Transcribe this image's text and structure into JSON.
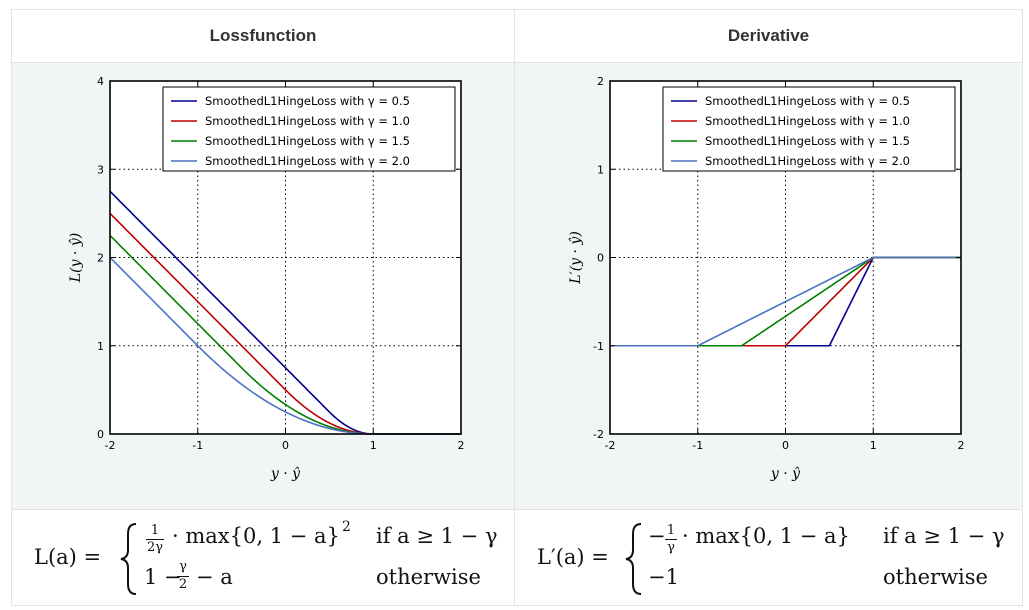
{
  "table": {
    "headers": [
      "Lossfunction",
      "Derivative"
    ]
  },
  "chart_data": [
    {
      "type": "line",
      "title": "",
      "xlabel": "y · ŷ",
      "ylabel": "L(y · ŷ)",
      "xlim": [
        -2,
        2
      ],
      "ylim": [
        0,
        4
      ],
      "xticks": [
        -2,
        -1,
        0,
        1,
        2
      ],
      "yticks": [
        0,
        1,
        2,
        3,
        4
      ],
      "grid": true,
      "legend_position": "top-right",
      "series": [
        {
          "name": "SmoothedL1HingeLoss with γ = 0.5",
          "color": "#00008b",
          "gamma": 0.5
        },
        {
          "name": "SmoothedL1HingeLoss with γ = 1.0",
          "color": "#c00000",
          "gamma": 1.0
        },
        {
          "name": "SmoothedL1HingeLoss with γ = 1.5",
          "color": "#008000",
          "gamma": 1.5
        },
        {
          "name": "SmoothedL1HingeLoss with γ = 2.0",
          "color": "#4c72c4",
          "gamma": 2.0
        }
      ],
      "x": [
        -2,
        -1.5,
        -1,
        -0.5,
        0,
        0.5,
        1,
        1.5,
        2
      ],
      "values": {
        "0.5": [
          2.75,
          2.25,
          1.75,
          1.25,
          0.75,
          0.25,
          0,
          0,
          0
        ],
        "1.0": [
          2.5,
          2.0,
          1.5,
          1.0,
          0.5,
          0.125,
          0,
          0,
          0
        ],
        "1.5": [
          2.25,
          1.75,
          1.25,
          0.75,
          0.333,
          0.083,
          0,
          0,
          0
        ],
        "2.0": [
          2.0,
          1.5,
          1.0,
          0.5625,
          0.25,
          0.0625,
          0,
          0,
          0
        ]
      }
    },
    {
      "type": "line",
      "title": "",
      "xlabel": "y · ŷ",
      "ylabel": "L′(y · ŷ)",
      "xlim": [
        -2,
        2
      ],
      "ylim": [
        -2,
        2
      ],
      "xticks": [
        -2,
        -1,
        0,
        1,
        2
      ],
      "yticks": [
        -2,
        -1,
        0,
        1,
        2
      ],
      "grid": true,
      "legend_position": "top-right",
      "series": [
        {
          "name": "SmoothedL1HingeLoss with γ = 0.5",
          "color": "#00008b",
          "gamma": 0.5
        },
        {
          "name": "SmoothedL1HingeLoss with γ = 1.0",
          "color": "#c00000",
          "gamma": 1.0
        },
        {
          "name": "SmoothedL1HingeLoss with γ = 1.5",
          "color": "#008000",
          "gamma": 1.5
        },
        {
          "name": "SmoothedL1HingeLoss with γ = 2.0",
          "color": "#4c72c4",
          "gamma": 2.0
        }
      ],
      "x": [
        -2,
        -1.5,
        -1,
        -0.5,
        0,
        0.5,
        1,
        1.5,
        2
      ],
      "values": {
        "0.5": [
          -1,
          -1,
          -1,
          -1,
          -1,
          -1,
          0,
          0,
          0
        ],
        "1.0": [
          -1,
          -1,
          -1,
          -1,
          -1,
          -0.5,
          0,
          0,
          0
        ],
        "1.5": [
          -1,
          -1,
          -1,
          -1,
          -0.667,
          -0.333,
          0,
          0,
          0
        ],
        "2.0": [
          -1,
          -1,
          -1,
          -0.75,
          -0.5,
          -0.25,
          0,
          0,
          0
        ]
      }
    }
  ],
  "formulas": {
    "loss": {
      "lhs": "L(a) =",
      "case1_tail": "· max{0, 1 − a}",
      "case1_sup": "2",
      "case1_frac_num": "1",
      "case1_frac_den": "2γ",
      "case1_cond": "if a ≥ 1 − γ",
      "case2_pre": "1 −",
      "case2_frac_num": "γ",
      "case2_frac_den": "2",
      "case2_post": "− a",
      "case2_cond": "otherwise"
    },
    "derivative": {
      "lhs": "L′(a) =",
      "case1_pre": "−",
      "case1_frac_num": "1",
      "case1_frac_den": "γ",
      "case1_tail": "· max{0, 1 − a}",
      "case1_cond": "if a ≥ 1 − γ",
      "case2": "−1",
      "case2_cond": "otherwise"
    }
  }
}
